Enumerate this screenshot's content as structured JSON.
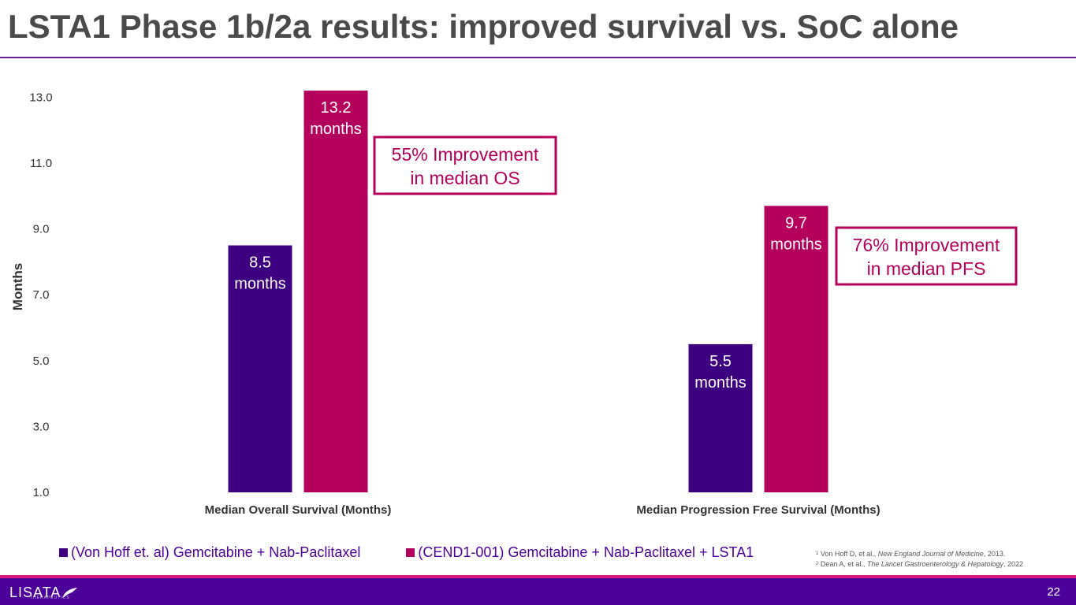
{
  "slide": {
    "title": "LSTA1 Phase 1b/2a results: improved survival vs. SoC alone",
    "page_number": "22"
  },
  "colors": {
    "soc": "#3d0080",
    "lsta1": "#b5005b",
    "accent_rule": "#6a1b9a",
    "footer_bar": "#4b0099",
    "footer_pink": "#d81b7a",
    "legend_text": "#4b0099",
    "callout": "#b5005b"
  },
  "chart_data": {
    "type": "bar",
    "ylabel": "Months",
    "xlabel": "",
    "ylim": [
      1.0,
      13.2
    ],
    "yticks": [
      "13.0",
      "11.0",
      "9.0",
      "7.0",
      "5.0",
      "3.0",
      "1.0"
    ],
    "categories": [
      "Median Overall Survival (Months)",
      "Median Progression Free Survival (Months)"
    ],
    "series": [
      {
        "name": "(Von Hoff et. al) Gemcitabine + Nab-Paclitaxel",
        "values": [
          8.5,
          5.5
        ],
        "labels": [
          [
            "8.5",
            "months"
          ],
          [
            "5.5",
            "months"
          ]
        ]
      },
      {
        "name": "(CEND1-001) Gemcitabine + Nab-Paclitaxel + LSTA1",
        "values": [
          13.2,
          9.7
        ],
        "labels": [
          [
            "13.2",
            "months"
          ],
          [
            "9.7",
            "months"
          ]
        ]
      }
    ],
    "annotations": [
      {
        "category": 0,
        "lines": [
          "55% Improvement",
          "in median OS"
        ]
      },
      {
        "category": 1,
        "lines": [
          "76% Improvement",
          "in median PFS"
        ]
      }
    ],
    "legend_position": "bottom-left",
    "grid": false
  },
  "footnotes": {
    "fn1": {
      "sup": "1",
      "author": "Von Hoff D, et al., ",
      "journal": "New England Journal of Medicine",
      "year": ", 2013."
    },
    "fn2": {
      "sup": "2",
      "author": "Dean A, et al., ",
      "journal": "The Lancet Gastroenterology & Hepatology",
      "year": ", 2022"
    }
  },
  "logo": {
    "name": "LISATA",
    "tagline": "THERAPEUTICS"
  }
}
